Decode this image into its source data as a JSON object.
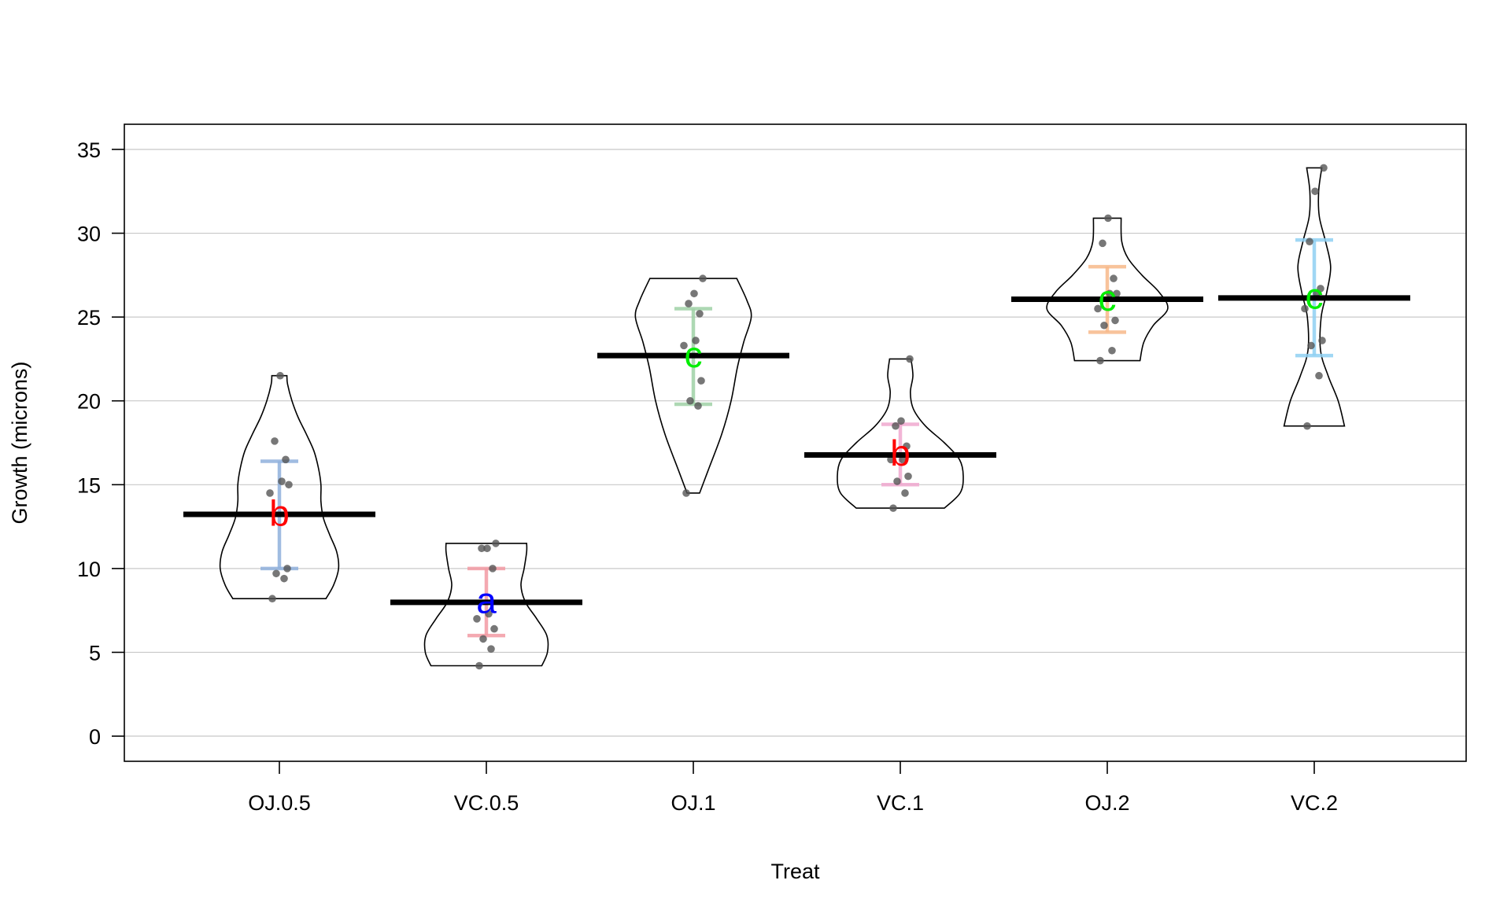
{
  "chart_data": {
    "type": "pirate",
    "title": "",
    "xlabel": "Treat",
    "ylabel": "Growth (microns)",
    "ylim": [
      -1.5,
      36.5
    ],
    "yticks": [
      0,
      5,
      10,
      15,
      20,
      25,
      30,
      35
    ],
    "grid": "horizontal",
    "categories": [
      "OJ.0.5",
      "VC.0.5",
      "OJ.1",
      "VC.1",
      "OJ.2",
      "VC.2"
    ],
    "means": [
      13.23,
      7.98,
      22.7,
      16.77,
      26.06,
      26.14
    ],
    "ci": [
      [
        10.0,
        16.4
      ],
      [
        6.0,
        10.0
      ],
      [
        19.8,
        25.5
      ],
      [
        15.0,
        18.6
      ],
      [
        24.1,
        28.0
      ],
      [
        22.7,
        29.6
      ]
    ],
    "group_letters": [
      "b",
      "a",
      "c",
      "b",
      "c",
      "c"
    ],
    "letter_colors": [
      "#ff0000",
      "#0000ff",
      "#00ee00",
      "#ff0000",
      "#00ee00",
      "#00ee00"
    ],
    "ci_colors": [
      "#8fb0dc",
      "#f29aa3",
      "#9fd1a6",
      "#f0a8cf",
      "#f7b98a",
      "#8fd0f2"
    ],
    "points": [
      [
        8.2,
        9.4,
        9.7,
        10.0,
        14.5,
        15.2,
        16.5,
        17.6,
        21.5,
        15.0
      ],
      [
        4.2,
        5.2,
        5.8,
        6.4,
        7.0,
        7.3,
        10.0,
        11.2,
        11.2,
        11.5
      ],
      [
        14.5,
        19.7,
        20.0,
        21.2,
        23.3,
        23.6,
        25.2,
        25.8,
        26.4,
        27.3
      ],
      [
        13.6,
        14.5,
        15.2,
        15.5,
        16.5,
        16.5,
        17.3,
        18.5,
        18.8,
        22.5
      ],
      [
        22.4,
        23.0,
        24.5,
        24.8,
        25.5,
        26.4,
        27.3,
        29.4,
        30.9,
        26.4
      ],
      [
        18.5,
        21.5,
        23.3,
        23.6,
        25.5,
        26.4,
        26.7,
        29.5,
        32.5,
        33.9
      ]
    ],
    "violin_widths": [
      [
        [
          8.2,
          0.74
        ],
        [
          9,
          0.86
        ],
        [
          10,
          0.94
        ],
        [
          11,
          0.91
        ],
        [
          12,
          0.8
        ],
        [
          13,
          0.7
        ],
        [
          14,
          0.66
        ],
        [
          15,
          0.66
        ],
        [
          16,
          0.62
        ],
        [
          17,
          0.55
        ],
        [
          18,
          0.43
        ],
        [
          19,
          0.3
        ],
        [
          20,
          0.2
        ],
        [
          21,
          0.13
        ],
        [
          21.5,
          0.12
        ]
      ],
      [
        [
          4.2,
          0.88
        ],
        [
          5,
          0.97
        ],
        [
          6,
          0.96
        ],
        [
          7,
          0.8
        ],
        [
          8,
          0.62
        ],
        [
          9,
          0.55
        ],
        [
          10,
          0.6
        ],
        [
          11,
          0.64
        ],
        [
          11.5,
          0.64
        ]
      ],
      [
        [
          14.5,
          0.1
        ],
        [
          16,
          0.25
        ],
        [
          18,
          0.45
        ],
        [
          20,
          0.6
        ],
        [
          22,
          0.7
        ],
        [
          23.5,
          0.8
        ],
        [
          25,
          0.92
        ],
        [
          26,
          0.85
        ],
        [
          27.3,
          0.69
        ]
      ],
      [
        [
          13.6,
          0.7
        ],
        [
          14.5,
          0.95
        ],
        [
          15.5,
          1.0
        ],
        [
          16.5,
          0.94
        ],
        [
          17.5,
          0.7
        ],
        [
          18.5,
          0.4
        ],
        [
          19.5,
          0.21
        ],
        [
          20.5,
          0.16
        ],
        [
          21.5,
          0.2
        ],
        [
          22.5,
          0.17
        ]
      ],
      [
        [
          22.4,
          0.52
        ],
        [
          23.5,
          0.58
        ],
        [
          24.5,
          0.73
        ],
        [
          25.5,
          0.96
        ],
        [
          26.5,
          0.82
        ],
        [
          27.5,
          0.55
        ],
        [
          28.5,
          0.33
        ],
        [
          29.5,
          0.23
        ],
        [
          30.9,
          0.22
        ]
      ],
      [
        [
          18.5,
          0.48
        ],
        [
          20,
          0.38
        ],
        [
          21.5,
          0.22
        ],
        [
          23,
          0.1
        ],
        [
          25,
          0.11
        ],
        [
          26.5,
          0.2
        ],
        [
          28,
          0.26
        ],
        [
          29.5,
          0.18
        ],
        [
          31,
          0.08
        ],
        [
          32.5,
          0.07
        ],
        [
          33.9,
          0.12
        ]
      ]
    ],
    "colors": {
      "mean_line": "#000000",
      "violin_border": "#000000",
      "points": "#555555",
      "grid": "#c8c8c8"
    }
  }
}
